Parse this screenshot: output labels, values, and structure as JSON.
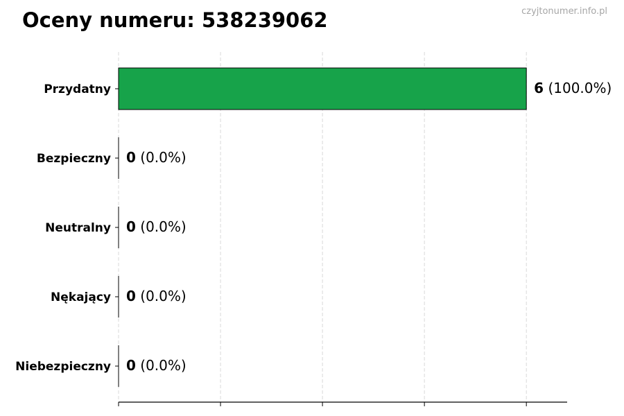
{
  "chart_data": {
    "type": "bar",
    "orientation": "horizontal",
    "title": "Oceny numeru: 538239062",
    "watermark": "czyjtonumer.info.pl",
    "categories": [
      "Przydatny",
      "Bezpieczny",
      "Neutralny",
      "Nękający",
      "Niebezpieczny"
    ],
    "values": [
      6,
      0,
      0,
      0,
      0
    ],
    "data_labels": [
      {
        "count": "6",
        "pct": "(100.0%)"
      },
      {
        "count": "0",
        "pct": "(0.0%)"
      },
      {
        "count": "0",
        "pct": "(0.0%)"
      },
      {
        "count": "0",
        "pct": "(0.0%)"
      },
      {
        "count": "0",
        "pct": "(0.0%)"
      }
    ],
    "xlim": [
      0,
      6.6
    ],
    "xticks": [
      0,
      1.5,
      3,
      4.5,
      6
    ],
    "xtick_labels_shown": false,
    "grid": "vertical dashed",
    "colors": {
      "bar": "#17a34a",
      "edge": "#000000",
      "grid": "#d9d9d9",
      "watermark": "#a6a6a6"
    }
  }
}
